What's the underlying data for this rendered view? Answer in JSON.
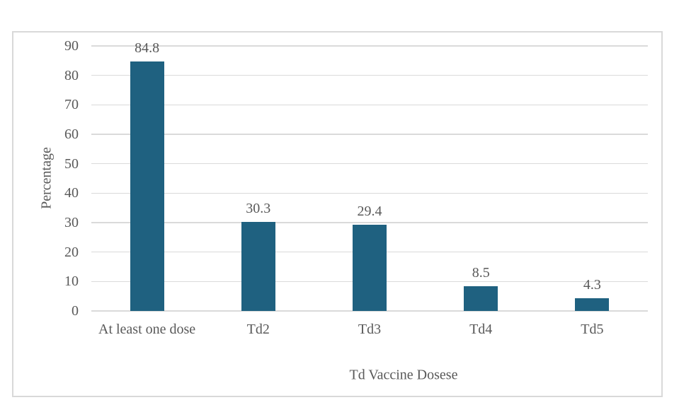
{
  "chart_data": {
    "type": "bar",
    "categories": [
      "At least one dose",
      "Td2",
      "Td3",
      "Td4",
      "Td5"
    ],
    "values": [
      84.8,
      30.3,
      29.4,
      8.5,
      4.3
    ],
    "data_labels": [
      "84.8",
      "30.3",
      "29.4",
      "8.5",
      "4.3"
    ],
    "title": "",
    "xlabel": "Td Vaccine Dosese",
    "ylabel": "Percentage",
    "ylim": [
      0,
      90
    ],
    "yticks": [
      0,
      10,
      20,
      30,
      40,
      50,
      60,
      70,
      80,
      90
    ],
    "grid": "horizontal",
    "legend": "none",
    "bar_color": "#1F6180",
    "gridline_color": "#DADADA",
    "axis_text_color": "#595959",
    "frame_border_color": "#D9D9D9"
  }
}
